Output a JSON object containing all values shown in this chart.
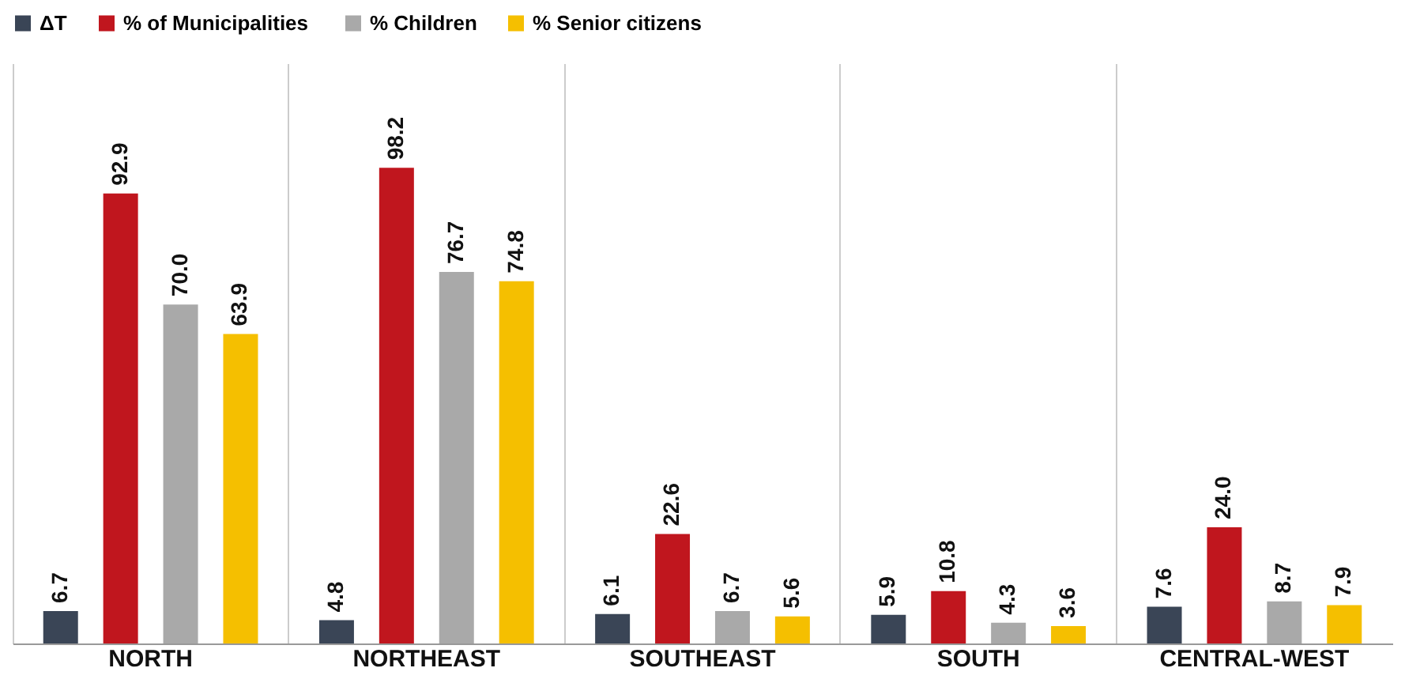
{
  "chart_data": {
    "type": "bar",
    "categories": [
      "NORTH",
      "NORTHEAST",
      "SOUTHEAST",
      "SOUTH",
      "CENTRAL-WEST"
    ],
    "series": [
      {
        "name": "ΔT",
        "color": "#3a4556",
        "values": [
          6.7,
          4.8,
          6.1,
          5.9,
          7.6
        ],
        "value_labels": [
          "6.7",
          "4.8",
          "6.1",
          "5.9",
          "7.6"
        ]
      },
      {
        "name": "%  of Municipalities",
        "color": "#c0161e",
        "values": [
          92.9,
          98.2,
          22.6,
          10.8,
          24.0
        ],
        "value_labels": [
          "92.9",
          "98.2",
          "22.6",
          "10.8",
          "24.0"
        ]
      },
      {
        "name": "% Children",
        "color": "#a9a9a9",
        "values": [
          70.0,
          76.7,
          6.7,
          4.3,
          8.7
        ],
        "value_labels": [
          "70.0",
          "76.7",
          "6.7",
          "4.3",
          "8.7"
        ]
      },
      {
        "name": "% Senior citizens",
        "color": "#f5bf00",
        "values": [
          63.9,
          74.8,
          5.6,
          3.6,
          7.9
        ],
        "value_labels": [
          "63.9",
          "74.8",
          "5.6",
          "3.6",
          "7.9"
        ]
      }
    ],
    "legend": "top",
    "grid": "x",
    "tick_labels": "x"
  }
}
